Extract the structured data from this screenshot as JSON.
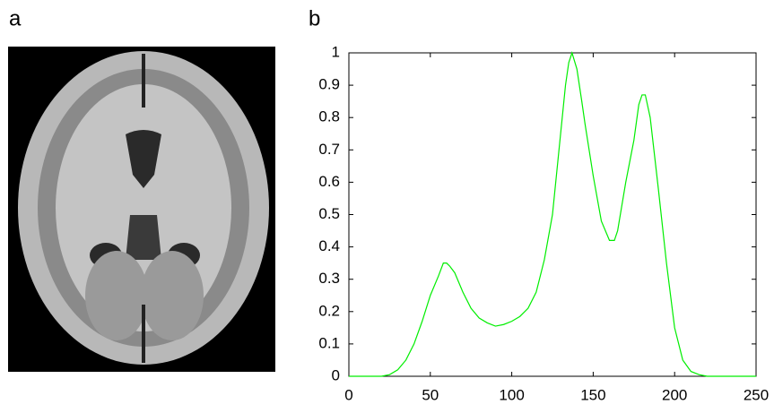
{
  "panel_a": {
    "label": "a"
  },
  "chart_data": {
    "type": "line",
    "panel_label": "b",
    "x": [
      0,
      5,
      10,
      15,
      20,
      25,
      30,
      35,
      40,
      45,
      50,
      55,
      58,
      60,
      62,
      65,
      70,
      75,
      80,
      85,
      90,
      95,
      100,
      105,
      110,
      115,
      120,
      125,
      130,
      133,
      135,
      137,
      140,
      143,
      145,
      150,
      155,
      160,
      163,
      165,
      170,
      175,
      178,
      180,
      182,
      185,
      190,
      195,
      200,
      205,
      210,
      215,
      220,
      230,
      240,
      250
    ],
    "values": [
      0,
      0,
      0,
      0,
      0,
      0.005,
      0.02,
      0.05,
      0.1,
      0.17,
      0.25,
      0.31,
      0.35,
      0.35,
      0.34,
      0.32,
      0.26,
      0.21,
      0.18,
      0.165,
      0.155,
      0.16,
      0.17,
      0.185,
      0.21,
      0.26,
      0.36,
      0.5,
      0.75,
      0.9,
      0.97,
      1.0,
      0.95,
      0.85,
      0.78,
      0.62,
      0.48,
      0.42,
      0.42,
      0.45,
      0.6,
      0.73,
      0.84,
      0.87,
      0.87,
      0.8,
      0.58,
      0.35,
      0.15,
      0.05,
      0.015,
      0.005,
      0,
      0,
      0,
      0
    ],
    "color": "#00ee00",
    "xlim": [
      0,
      250
    ],
    "xticks": [
      0,
      50,
      100,
      150,
      200,
      250
    ],
    "ylim": [
      0,
      1
    ],
    "yticks": [
      0,
      0.1,
      0.2,
      0.3,
      0.4,
      0.5,
      0.6,
      0.7,
      0.8,
      0.9,
      1
    ]
  }
}
